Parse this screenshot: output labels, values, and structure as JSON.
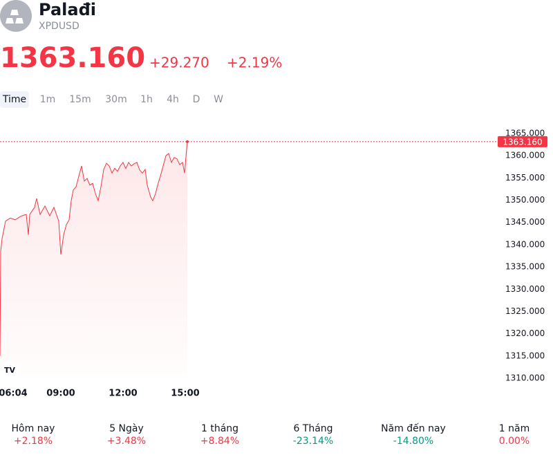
{
  "header": {
    "title": "Palađi",
    "symbol": "XPDUSD"
  },
  "price": {
    "last": "1363.160",
    "change": "+29.270",
    "change_percent": "+2.19%"
  },
  "timeframes": [
    "Time",
    "1m",
    "15m",
    "30m",
    "1h",
    "4h",
    "D",
    "W"
  ],
  "chart_data": {
    "type": "line",
    "x": [
      "06:04",
      "06:06",
      "06:10",
      "06:20",
      "06:34",
      "06:48",
      "07:04",
      "07:20",
      "07:26",
      "07:30",
      "07:44",
      "07:50",
      "08:00",
      "08:14",
      "08:28",
      "08:40",
      "08:54",
      "09:00",
      "09:08",
      "09:16",
      "09:24",
      "09:30",
      "09:36",
      "09:44",
      "09:52",
      "10:00",
      "10:08",
      "10:16",
      "10:24",
      "10:32",
      "10:40",
      "10:48",
      "10:56",
      "11:04",
      "11:12",
      "11:20",
      "11:28",
      "11:36",
      "11:44",
      "11:52",
      "12:00",
      "12:08",
      "12:16",
      "12:24",
      "12:32",
      "12:40",
      "12:48",
      "12:56",
      "13:04",
      "13:10",
      "13:20",
      "13:26",
      "13:34",
      "13:40",
      "13:48",
      "13:56",
      "14:04",
      "14:12",
      "14:20",
      "14:28",
      "14:36",
      "14:44",
      "14:52",
      "14:58",
      "15:04",
      "15:06"
    ],
    "series": [
      {
        "name": "XPDUSD",
        "color": "#f23645",
        "values": [
          1315.0,
          1338.6,
          1341.4,
          1345.3,
          1346.0,
          1345.6,
          1346.4,
          1346.8,
          1342.2,
          1346.8,
          1348.4,
          1350.4,
          1346.8,
          1348.7,
          1346.5,
          1348.4,
          1345.3,
          1337.8,
          1342.2,
          1344.5,
          1345.6,
          1349.9,
          1352.3,
          1353.0,
          1355.4,
          1357.7,
          1354.3,
          1354.9,
          1353.4,
          1353.8,
          1351.5,
          1349.9,
          1353.0,
          1356.9,
          1358.3,
          1357.7,
          1356.1,
          1357.2,
          1356.5,
          1357.7,
          1358.5,
          1357.1,
          1358.5,
          1357.7,
          1358.2,
          1358.5,
          1356.8,
          1356.1,
          1356.9,
          1353.4,
          1350.7,
          1349.9,
          1351.5,
          1353.4,
          1355.4,
          1357.7,
          1360.0,
          1360.5,
          1358.5,
          1359.6,
          1359.3,
          1358.0,
          1358.5,
          1356.1,
          1361.6,
          1363.16
        ]
      }
    ],
    "xlim": [
      "06:04",
      "15:00"
    ],
    "xticks": [
      "06:04",
      "09:00",
      "12:00",
      "15:00"
    ],
    "ylim": [
      1310,
      1365
    ],
    "yticks": [
      {
        "value": 1310,
        "label": "1310.000"
      },
      {
        "value": 1315,
        "label": "1315.000"
      },
      {
        "value": 1320,
        "label": "1320.000"
      },
      {
        "value": 1325,
        "label": "1325.000"
      },
      {
        "value": 1330,
        "label": "1330.000"
      },
      {
        "value": 1335,
        "label": "1335.000"
      },
      {
        "value": 1340,
        "label": "1340.000"
      },
      {
        "value": 1345,
        "label": "1345.000"
      },
      {
        "value": 1350,
        "label": "1350.000"
      },
      {
        "value": 1355,
        "label": "1355.000"
      },
      {
        "value": 1360,
        "label": "1360.000"
      },
      {
        "value": 1365,
        "label": "1365.000"
      }
    ],
    "grid": false
  },
  "performance": [
    {
      "label": "Hôm nay",
      "value": "+2.18%",
      "color": "#f23645"
    },
    {
      "label": "5 Ngày",
      "value": "+3.48%",
      "color": "#f23645"
    },
    {
      "label": "1 tháng",
      "value": "+8.84%",
      "color": "#f23645"
    },
    {
      "label": "6 Tháng",
      "value": "-23.14%",
      "color": "#089981"
    },
    {
      "label": "Năm đến nay",
      "value": "-14.80%",
      "color": "#089981"
    },
    {
      "label": "1 năm",
      "value": "0.00%",
      "color": "#f23645"
    }
  ]
}
